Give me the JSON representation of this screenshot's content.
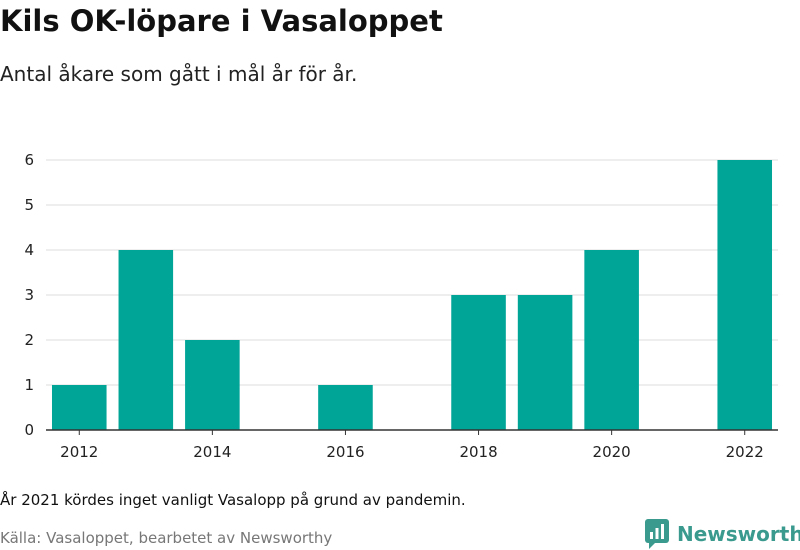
{
  "header": {
    "title": "Kils OK-löpare i Vasaloppet",
    "subtitle": "Antal åkare som gått i mål år för år."
  },
  "footer": {
    "note": "År 2021 kördes inget vanligt Vasalopp på grund av pandemin.",
    "source": "Källa: Vasaloppet, bearbetet av Newsworthy",
    "brand": "Newsworthy",
    "brand_icon": "newsworthy-logo-icon"
  },
  "colors": {
    "bar": "#00a598",
    "grid": "#dddddd",
    "brand": "#3a9a8e"
  },
  "chart_data": {
    "type": "bar",
    "title": "Kils OK-löpare i Vasaloppet",
    "xlabel": "",
    "ylabel": "",
    "x": [
      2012,
      2013,
      2014,
      2015,
      2016,
      2017,
      2018,
      2019,
      2020,
      2021,
      2022
    ],
    "values": [
      1,
      4,
      2,
      null,
      1,
      null,
      3,
      3,
      4,
      null,
      6
    ],
    "xticks": [
      "2012",
      "2014",
      "2016",
      "2018",
      "2020",
      "2022"
    ],
    "yticks": [
      "0",
      "1",
      "2",
      "3",
      "4",
      "5",
      "6"
    ],
    "ylim": [
      0,
      6
    ],
    "grid": true
  }
}
